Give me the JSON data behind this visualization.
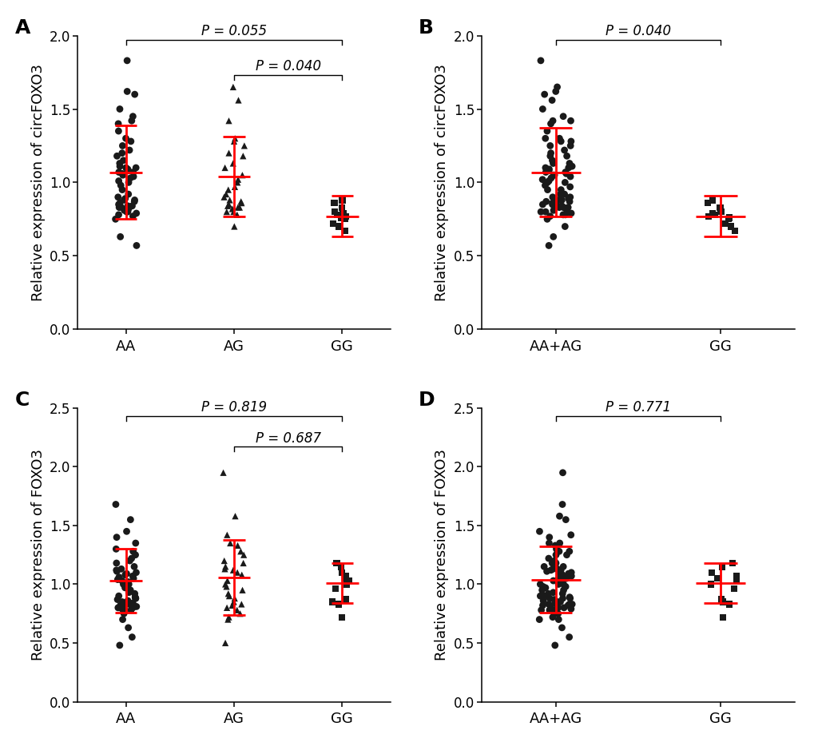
{
  "panels": {
    "A": {
      "title": "A",
      "ylabel": "Relative expression of circFOXO3",
      "ylim": [
        0.0,
        2.0
      ],
      "yticks": [
        0.0,
        0.5,
        1.0,
        1.5,
        2.0
      ],
      "groups": [
        "AA",
        "AG",
        "GG"
      ],
      "means": [
        1.07,
        1.04,
        0.77
      ],
      "sds": [
        0.32,
        0.27,
        0.14
      ],
      "marker_types": [
        "o",
        "^",
        "s"
      ],
      "pvalues": [
        {
          "text": "P = 0.055",
          "g1": 0,
          "g2": 2,
          "y": 1.97
        },
        {
          "text": "P = 0.040",
          "g1": 1,
          "g2": 2,
          "y": 1.73
        }
      ],
      "data_AA": [
        0.57,
        0.63,
        0.75,
        0.77,
        0.78,
        0.79,
        0.8,
        0.8,
        0.81,
        0.82,
        0.83,
        0.83,
        0.84,
        0.84,
        0.85,
        0.86,
        0.87,
        0.88,
        0.88,
        0.89,
        0.9,
        0.92,
        0.95,
        0.98,
        1.0,
        1.01,
        1.03,
        1.04,
        1.05,
        1.06,
        1.07,
        1.07,
        1.08,
        1.09,
        1.1,
        1.1,
        1.11,
        1.13,
        1.15,
        1.18,
        1.2,
        1.22,
        1.25,
        1.28,
        1.3,
        1.35,
        1.4,
        1.42,
        1.45,
        1.5,
        1.6,
        1.62,
        1.83
      ],
      "data_AG": [
        0.7,
        0.78,
        0.8,
        0.8,
        0.82,
        0.83,
        0.83,
        0.84,
        0.85,
        0.86,
        0.87,
        0.88,
        0.9,
        0.92,
        0.95,
        0.97,
        1.0,
        1.02,
        1.05,
        1.1,
        1.13,
        1.18,
        1.2,
        1.25,
        1.28,
        1.3,
        1.42,
        1.56,
        1.65
      ],
      "data_GG": [
        0.67,
        0.7,
        0.72,
        0.75,
        0.76,
        0.77,
        0.78,
        0.79,
        0.8,
        0.83,
        0.86,
        0.88
      ]
    },
    "B": {
      "title": "B",
      "ylabel": "Relative expression of circFOXO3",
      "ylim": [
        0.0,
        2.0
      ],
      "yticks": [
        0.0,
        0.5,
        1.0,
        1.5,
        2.0
      ],
      "groups": [
        "AA+AG",
        "GG"
      ],
      "means": [
        1.07,
        0.77
      ],
      "sds": [
        0.3,
        0.14
      ],
      "marker_types": [
        "o",
        "s"
      ],
      "pvalues": [
        {
          "text": "P = 0.040",
          "g1": 0,
          "g2": 1,
          "y": 1.97
        }
      ],
      "data_AAAG": [
        0.57,
        0.63,
        0.7,
        0.75,
        0.77,
        0.78,
        0.78,
        0.79,
        0.8,
        0.8,
        0.8,
        0.81,
        0.81,
        0.82,
        0.83,
        0.83,
        0.83,
        0.84,
        0.84,
        0.85,
        0.85,
        0.86,
        0.86,
        0.87,
        0.87,
        0.88,
        0.88,
        0.88,
        0.89,
        0.9,
        0.9,
        0.92,
        0.92,
        0.95,
        0.95,
        0.97,
        0.98,
        1.0,
        1.0,
        1.01,
        1.02,
        1.03,
        1.04,
        1.05,
        1.05,
        1.06,
        1.07,
        1.07,
        1.08,
        1.09,
        1.1,
        1.1,
        1.11,
        1.13,
        1.13,
        1.15,
        1.18,
        1.18,
        1.2,
        1.22,
        1.25,
        1.25,
        1.28,
        1.28,
        1.3,
        1.3,
        1.35,
        1.4,
        1.42,
        1.42,
        1.45,
        1.5,
        1.56,
        1.6,
        1.62,
        1.65,
        1.83
      ],
      "data_GG": [
        0.67,
        0.7,
        0.72,
        0.75,
        0.76,
        0.77,
        0.78,
        0.79,
        0.8,
        0.83,
        0.86,
        0.88
      ]
    },
    "C": {
      "title": "C",
      "ylabel": "Relative expression of FOXO3",
      "ylim": [
        0.0,
        2.5
      ],
      "yticks": [
        0.0,
        0.5,
        1.0,
        1.5,
        2.0,
        2.5
      ],
      "groups": [
        "AA",
        "AG",
        "GG"
      ],
      "means": [
        1.03,
        1.06,
        1.01
      ],
      "sds": [
        0.27,
        0.32,
        0.17
      ],
      "marker_types": [
        "o",
        "^",
        "s"
      ],
      "pvalues": [
        {
          "text": "P = 0.819",
          "g1": 0,
          "g2": 2,
          "y": 2.43
        },
        {
          "text": "P = 0.687",
          "g1": 1,
          "g2": 2,
          "y": 2.17
        }
      ],
      "data_AA": [
        0.48,
        0.55,
        0.63,
        0.7,
        0.75,
        0.78,
        0.78,
        0.79,
        0.8,
        0.8,
        0.81,
        0.82,
        0.82,
        0.83,
        0.83,
        0.84,
        0.85,
        0.86,
        0.87,
        0.88,
        0.88,
        0.89,
        0.9,
        0.92,
        0.93,
        0.95,
        0.97,
        0.98,
        1.0,
        1.0,
        1.02,
        1.03,
        1.04,
        1.05,
        1.06,
        1.07,
        1.08,
        1.09,
        1.1,
        1.11,
        1.12,
        1.13,
        1.15,
        1.18,
        1.2,
        1.22,
        1.25,
        1.28,
        1.3,
        1.35,
        1.4,
        1.45,
        1.55,
        1.68
      ],
      "data_AG": [
        0.5,
        0.7,
        0.72,
        0.75,
        0.78,
        0.8,
        0.82,
        0.83,
        0.85,
        0.88,
        0.9,
        0.92,
        0.95,
        0.98,
        1.0,
        1.03,
        1.08,
        1.1,
        1.12,
        1.13,
        1.15,
        1.18,
        1.2,
        1.25,
        1.28,
        1.33,
        1.35,
        1.42,
        1.58,
        1.95
      ],
      "data_GG": [
        0.72,
        0.83,
        0.85,
        0.87,
        0.96,
        1.0,
        1.03,
        1.05,
        1.07,
        1.1,
        1.15,
        1.18
      ]
    },
    "D": {
      "title": "D",
      "ylabel": "Relative expression of FOXO3",
      "ylim": [
        0.0,
        2.5
      ],
      "yticks": [
        0.0,
        0.5,
        1.0,
        1.5,
        2.0,
        2.5
      ],
      "groups": [
        "AA+AG",
        "GG"
      ],
      "means": [
        1.04,
        1.01
      ],
      "sds": [
        0.28,
        0.17
      ],
      "marker_types": [
        "o",
        "s"
      ],
      "pvalues": [
        {
          "text": "P = 0.771",
          "g1": 0,
          "g2": 1,
          "y": 2.43
        }
      ],
      "data_AAAG": [
        0.48,
        0.55,
        0.63,
        0.7,
        0.7,
        0.72,
        0.75,
        0.75,
        0.78,
        0.78,
        0.78,
        0.79,
        0.8,
        0.8,
        0.8,
        0.81,
        0.82,
        0.82,
        0.83,
        0.83,
        0.83,
        0.84,
        0.85,
        0.85,
        0.86,
        0.87,
        0.88,
        0.88,
        0.88,
        0.89,
        0.9,
        0.9,
        0.92,
        0.92,
        0.93,
        0.95,
        0.95,
        0.97,
        0.98,
        0.98,
        1.0,
        1.0,
        1.0,
        1.02,
        1.03,
        1.03,
        1.04,
        1.05,
        1.06,
        1.07,
        1.08,
        1.08,
        1.09,
        1.1,
        1.1,
        1.11,
        1.12,
        1.12,
        1.13,
        1.13,
        1.15,
        1.15,
        1.18,
        1.18,
        1.2,
        1.22,
        1.25,
        1.25,
        1.28,
        1.28,
        1.3,
        1.33,
        1.35,
        1.35,
        1.4,
        1.42,
        1.45,
        1.55,
        1.58,
        1.68,
        1.95
      ],
      "data_GG": [
        0.72,
        0.83,
        0.85,
        0.87,
        0.96,
        1.0,
        1.03,
        1.05,
        1.07,
        1.1,
        1.15,
        1.18
      ]
    }
  },
  "scatter_color": "#1a1a1a",
  "error_color": "#ff0000",
  "line_color": "#000000",
  "bg_color": "#ffffff",
  "panel_label_fontsize": 18,
  "axis_label_fontsize": 13,
  "tick_fontsize": 12,
  "pval_fontsize": 12,
  "xtick_fontsize": 13,
  "jitter_seed": 42
}
